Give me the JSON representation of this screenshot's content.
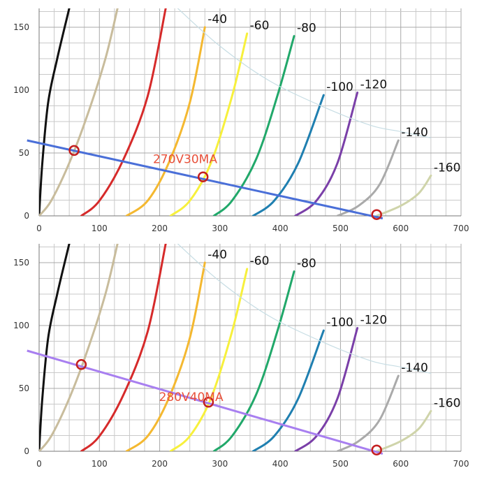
{
  "chart_data": [
    {
      "type": "line",
      "annotation": "270V30MA",
      "xlim": [
        0,
        700
      ],
      "ylim": [
        0,
        165
      ],
      "x_ticks": [
        0,
        100,
        200,
        300,
        400,
        500,
        600,
        700
      ],
      "y_ticks": [
        0,
        50,
        100,
        150
      ],
      "grid": true,
      "series": [
        {
          "color": "#111111",
          "x": [
            0,
            5,
            15,
            30,
            50
          ],
          "y": [
            0,
            40,
            90,
            125,
            165
          ]
        },
        {
          "color": "#c8bc9c",
          "x": [
            0,
            20,
            50,
            80,
            110,
            130
          ],
          "y": [
            0,
            12,
            42,
            80,
            125,
            165
          ]
        },
        {
          "color": "#d62a2a",
          "x": [
            70,
            100,
            140,
            180,
            210
          ],
          "y": [
            0,
            12,
            45,
            95,
            165
          ]
        },
        {
          "name": "-40",
          "color": "#f4b830",
          "x": [
            145,
            180,
            215,
            250,
            275
          ],
          "y": [
            0,
            12,
            42,
            90,
            150
          ]
        },
        {
          "name": "-60",
          "color": "#f7f03c",
          "x": [
            218,
            250,
            285,
            320,
            345
          ],
          "y": [
            0,
            12,
            42,
            95,
            145
          ]
        },
        {
          "name": "-80",
          "color": "#21a86a",
          "x": [
            290,
            320,
            360,
            395,
            423
          ],
          "y": [
            0,
            12,
            45,
            95,
            143
          ]
        },
        {
          "name": "-100",
          "color": "#1f7fb0",
          "x": [
            355,
            390,
            430,
            472
          ],
          "y": [
            0,
            12,
            42,
            96
          ]
        },
        {
          "name": "-120",
          "color": "#7a3fa8",
          "x": [
            425,
            460,
            495,
            528
          ],
          "y": [
            0,
            12,
            42,
            98
          ]
        },
        {
          "name": "-140",
          "color": "#aaaaaa",
          "x": [
            495,
            530,
            565,
            596
          ],
          "y": [
            0,
            8,
            25,
            60
          ]
        },
        {
          "name": "-160",
          "color": "#cfd4aa",
          "x": [
            560,
            600,
            630,
            650
          ],
          "y": [
            0,
            8,
            18,
            32
          ]
        },
        {
          "color": "#c7dde4",
          "x": [
            230,
            300,
            380,
            470,
            550,
            600,
            650
          ],
          "y": [
            165,
            135,
            108,
            87,
            72,
            67,
            62
          ]
        }
      ],
      "load_line": {
        "color": "#4a6fd8",
        "x": [
          -20,
          570
        ],
        "y": [
          60,
          -2
        ]
      },
      "markers": {
        "x": [
          58,
          272,
          560
        ],
        "y": [
          52,
          31,
          1
        ]
      }
    },
    {
      "type": "line",
      "annotation": "280V40MA",
      "xlim": [
        0,
        700
      ],
      "ylim": [
        0,
        165
      ],
      "x_ticks": [
        0,
        100,
        200,
        300,
        400,
        500,
        600,
        700
      ],
      "y_ticks": [
        0,
        50,
        100,
        150
      ],
      "grid": true,
      "series": [
        {
          "color": "#111111",
          "x": [
            0,
            5,
            15,
            30,
            50
          ],
          "y": [
            0,
            40,
            90,
            125,
            165
          ]
        },
        {
          "color": "#c8bc9c",
          "x": [
            0,
            20,
            50,
            80,
            110,
            130
          ],
          "y": [
            0,
            12,
            42,
            80,
            125,
            165
          ]
        },
        {
          "color": "#d62a2a",
          "x": [
            70,
            100,
            140,
            180,
            210
          ],
          "y": [
            0,
            12,
            45,
            95,
            165
          ]
        },
        {
          "name": "-40",
          "color": "#f4b830",
          "x": [
            145,
            180,
            215,
            250,
            275
          ],
          "y": [
            0,
            12,
            42,
            90,
            150
          ]
        },
        {
          "name": "-60",
          "color": "#f7f03c",
          "x": [
            218,
            250,
            285,
            320,
            345
          ],
          "y": [
            0,
            12,
            42,
            95,
            145
          ]
        },
        {
          "name": "-80",
          "color": "#21a86a",
          "x": [
            290,
            320,
            360,
            395,
            423
          ],
          "y": [
            0,
            12,
            45,
            95,
            143
          ]
        },
        {
          "name": "-100",
          "color": "#1f7fb0",
          "x": [
            355,
            390,
            430,
            472
          ],
          "y": [
            0,
            12,
            42,
            96
          ]
        },
        {
          "name": "-120",
          "color": "#7a3fa8",
          "x": [
            425,
            460,
            495,
            528
          ],
          "y": [
            0,
            12,
            42,
            98
          ]
        },
        {
          "name": "-140",
          "color": "#aaaaaa",
          "x": [
            495,
            530,
            565,
            596
          ],
          "y": [
            0,
            8,
            25,
            60
          ]
        },
        {
          "name": "-160",
          "color": "#cfd4aa",
          "x": [
            560,
            600,
            630,
            650
          ],
          "y": [
            0,
            8,
            18,
            32
          ]
        },
        {
          "color": "#c7dde4",
          "x": [
            230,
            300,
            380,
            470,
            550,
            600,
            650
          ],
          "y": [
            165,
            135,
            108,
            87,
            72,
            67,
            62
          ]
        }
      ],
      "load_line": {
        "color": "#a87ff0",
        "x": [
          -20,
          570
        ],
        "y": [
          80,
          -2
        ]
      },
      "markers": {
        "x": [
          70,
          281,
          560
        ],
        "y": [
          69,
          39,
          1
        ]
      }
    }
  ]
}
